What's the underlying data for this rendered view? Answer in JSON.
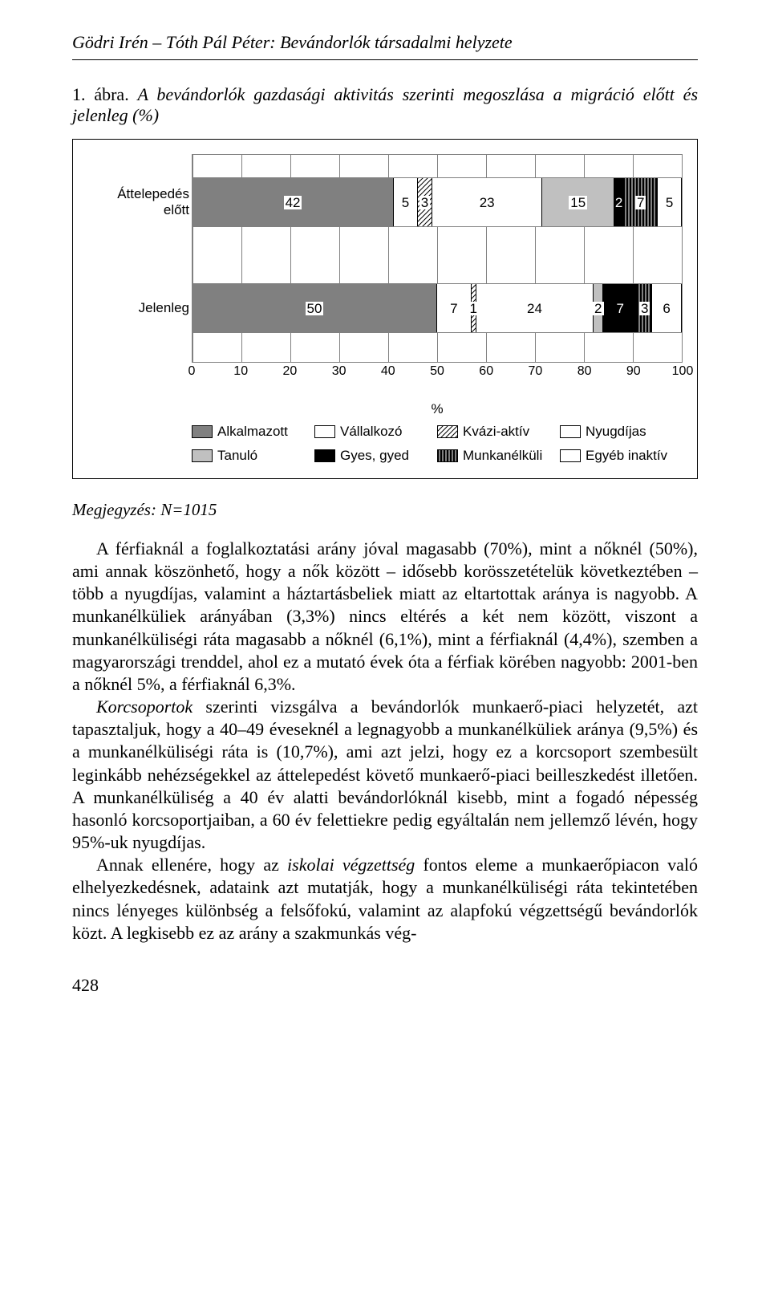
{
  "header": {
    "text": "Gödri Irén – Tóth Pál Péter: Bevándorlók társadalmi helyzete"
  },
  "figure": {
    "number": "1. ábra.",
    "caption": "A bevándorlók gazdasági aktivitás szerinti megoszlása a migráció előtt és jelenleg (%)"
  },
  "chart": {
    "type": "stacked-horizontal-bar",
    "xlim": [
      0,
      100
    ],
    "xticks": [
      0,
      10,
      20,
      30,
      40,
      50,
      60,
      70,
      80,
      90,
      100
    ],
    "pct_label": "%",
    "grid_color": "#808080",
    "background": "#ffffff",
    "bar1": {
      "label": "Áttelepedés előtt",
      "segments": [
        {
          "name": "alkalmazott",
          "value": 42,
          "label": "42"
        },
        {
          "name": "vallalkozo",
          "value": 5,
          "label": "5"
        },
        {
          "name": "kvazi",
          "value": 3,
          "label": "3"
        },
        {
          "name": "nyugdijas",
          "value": 23,
          "label": "23"
        },
        {
          "name": "tanulo",
          "value": 15,
          "label": "15"
        },
        {
          "name": "gyes",
          "value": 2,
          "label": "2"
        },
        {
          "name": "munkanelkuli",
          "value": 7,
          "label": "7"
        },
        {
          "name": "egyeb",
          "value": 5,
          "label": "5"
        }
      ]
    },
    "bar2": {
      "label": "Jelenleg",
      "segments": [
        {
          "name": "alkalmazott",
          "value": 50,
          "label": "50"
        },
        {
          "name": "vallalkozo",
          "value": 7,
          "label": "7"
        },
        {
          "name": "kvazi",
          "value": 1,
          "label": "1"
        },
        {
          "name": "nyugdijas",
          "value": 24,
          "label": "24"
        },
        {
          "name": "tanulo",
          "value": 2,
          "label": "2"
        },
        {
          "name": "gyes",
          "value": 7,
          "label": "7"
        },
        {
          "name": "munkanelkuli",
          "value": 3,
          "label": "3"
        },
        {
          "name": "egyeb",
          "value": 6,
          "label": "6"
        }
      ]
    },
    "legend": [
      {
        "key": "alkalmazott",
        "label": "Alkalmazott",
        "fill": "#808080",
        "pattern": "solid"
      },
      {
        "key": "vallalkozo",
        "label": "Vállalkozó",
        "fill": "#ffffff",
        "pattern": "solid"
      },
      {
        "key": "kvazi",
        "label": "Kvázi-aktív",
        "fill": "#ffffff",
        "pattern": "diag"
      },
      {
        "key": "nyugdijas",
        "label": "Nyugdíjas",
        "fill": "#ffffff",
        "pattern": "solid"
      },
      {
        "key": "tanulo",
        "label": "Tanuló",
        "fill": "#c0c0c0",
        "pattern": "solid"
      },
      {
        "key": "gyes",
        "label": "Gyes, gyed",
        "fill": "#000000",
        "pattern": "solid"
      },
      {
        "key": "munkanelkuli",
        "label": "Munkanélküli",
        "fill": "#ffffff",
        "pattern": "vert"
      },
      {
        "key": "egyeb",
        "label": "Egyéb inaktív",
        "fill": "#ffffff",
        "pattern": "solid"
      }
    ],
    "label_font": "Arial",
    "label_fontsize": 17
  },
  "note": "Megjegyzés: N=1015",
  "body": {
    "p1": "A férfiaknál a foglalkoztatási arány jóval magasabb (70%), mint a nőknél (50%), ami annak köszönhető, hogy a nők között – idősebb korösszetételük következtében – több a nyugdíjas, valamint a háztartásbeliek miatt az eltartottak aránya is nagyobb. A munkanélküliek arányában (3,3%) nincs eltérés a két nem között, viszont a munkanélküliségi ráta magasabb a nőknél (6,1%), mint a férfiaknál (4,4%), szemben a magyarországi trenddel, ahol ez a mutató évek óta a férfiak körében nagyobb: 2001-ben a nőknél 5%, a férfiaknál 6,3%.",
    "p2a": "Korcsoportok",
    "p2b": " szerinti vizsgálva a bevándorlók munkaerő-piaci helyzetét, azt tapasztaljuk, hogy a 40–49 éveseknél a legnagyobb a munkanélküliek aránya (9,5%) és a munkanélküliségi ráta is (10,7%), ami azt jelzi, hogy ez a korcsoport szembesült leginkább nehézségekkel az áttelepedést követő munkaerő-piaci beilleszkedést illetően. A munkanélküliség a 40 év alatti bevándorlóknál kisebb, mint a fogadó népesség hasonló korcsoportjaiban, a 60 év felettiekre pedig egyáltalán nem jellemző lévén, hogy 95%-uk nyugdíjas.",
    "p3a": "Annak ellenére, hogy az ",
    "p3b": "iskolai végzettség",
    "p3c": " fontos eleme a munkaerőpiacon való elhelyezkedésnek, adataink azt mutatják, hogy a munkanélküliségi ráta tekintetében nincs lényeges különbség a felsőfokú, valamint az alapfokú végzettségű bevándorlók közt. A legkisebb ez az arány a szakmunkás vég-"
  },
  "pageNum": "428"
}
